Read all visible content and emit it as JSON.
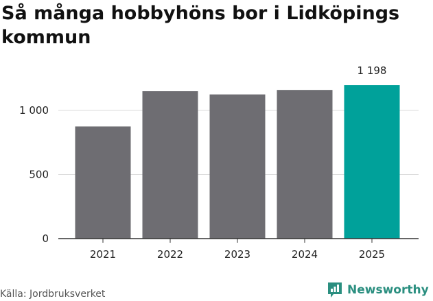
{
  "title": "Så många hobbyhöns bor i Lidköpings kommun",
  "source": "Källa: Jordbruksverket",
  "brand": {
    "name": "Newsworthy",
    "icon": "newsworthy-logo-icon"
  },
  "colors": {
    "bar": "#6e6d72",
    "highlight": "#00a19a",
    "grid": "#dddddd",
    "axis": "#333333"
  },
  "chart_data": {
    "type": "bar",
    "categories": [
      "2021",
      "2022",
      "2023",
      "2024",
      "2025"
    ],
    "values": [
      875,
      1150,
      1125,
      1160,
      1198
    ],
    "ylim": [
      0,
      1300
    ],
    "yticks": [
      0,
      500,
      1000
    ],
    "ytick_labels": [
      "0",
      "500",
      "1 000"
    ],
    "highlight_index": 4,
    "data_labels": [
      null,
      null,
      null,
      null,
      "1 198"
    ],
    "grid": true,
    "legend": "none",
    "xlabel": "",
    "ylabel": ""
  }
}
